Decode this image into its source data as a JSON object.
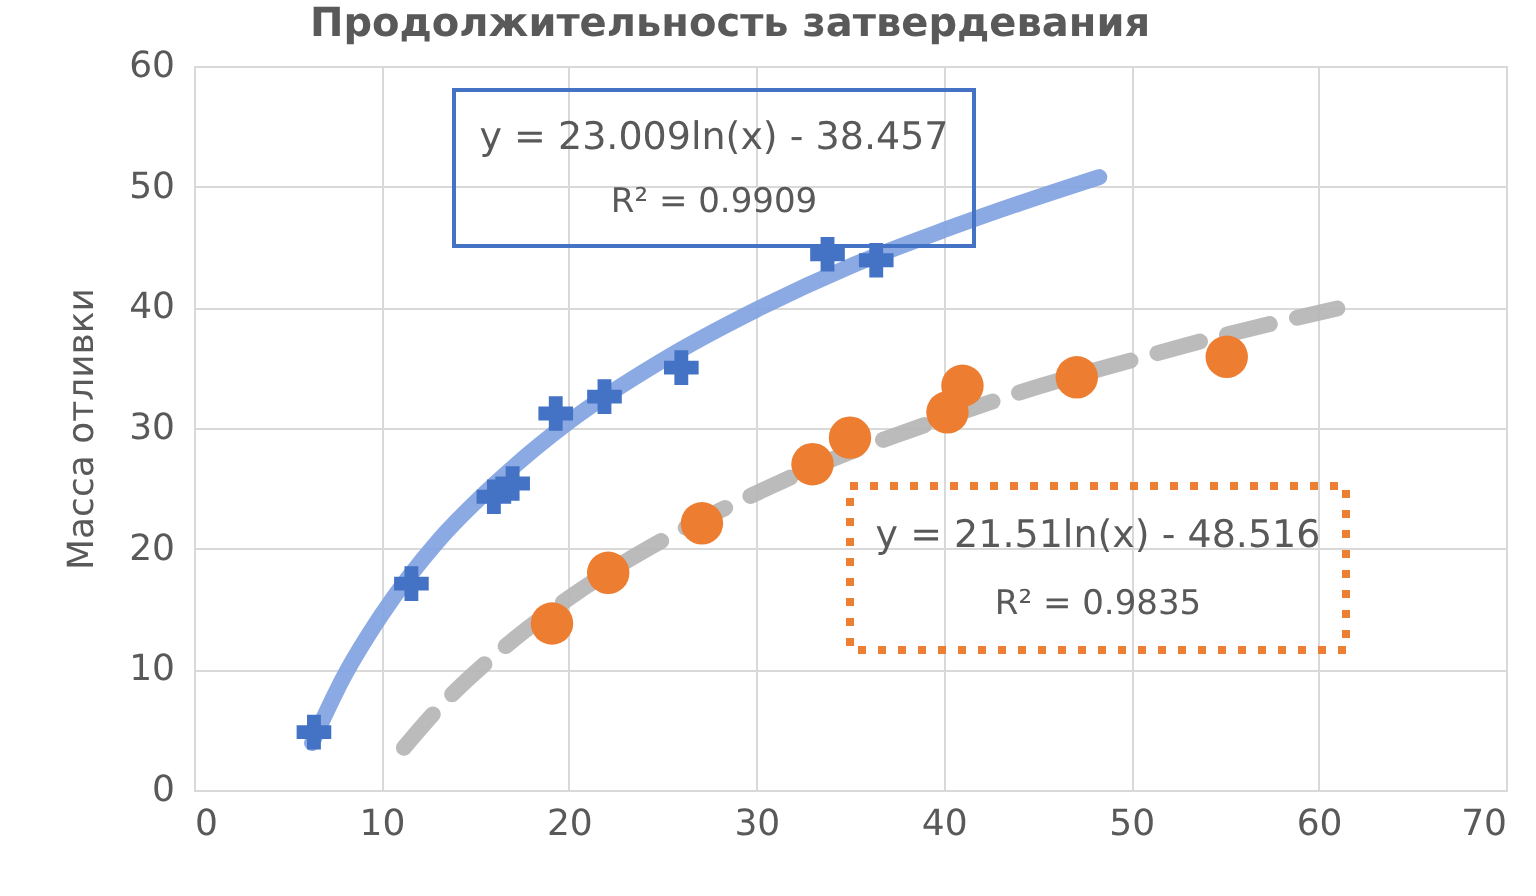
{
  "chart_data": {
    "type": "scatter",
    "title": "Продолжительность затвердевания",
    "ylabel": "Масса отливки",
    "xlim": [
      0,
      70
    ],
    "xticks": [
      0,
      10,
      20,
      30,
      40,
      50,
      60,
      70
    ],
    "ylim": [
      0,
      60
    ],
    "yticks": [
      0,
      10,
      20,
      30,
      40,
      50,
      60
    ],
    "grid": true,
    "legend": false,
    "series": [
      {
        "marker": "cross",
        "color": "#4472c4",
        "x": [
          6.4,
          11.6,
          16.0,
          17.0,
          19.3,
          21.9,
          26.0,
          33.8,
          36.4
        ],
        "values": [
          4.8,
          17.1,
          24.3,
          25.4,
          31.2,
          32.6,
          35.0,
          44.4,
          43.9
        ]
      },
      {
        "marker": "circle",
        "color": "#ed7d31",
        "x": [
          19.1,
          22.1,
          27.1,
          33.0,
          35.0,
          40.2,
          41.0,
          47.1,
          55.1
        ],
        "values": [
          13.8,
          18.0,
          22.1,
          27.0,
          29.2,
          31.3,
          33.5,
          34.2,
          35.9
        ]
      },
      {
        "type": "line",
        "line_style": "solid",
        "color": "#7ea1e0",
        "x": [
          6.3,
          8,
          10,
          13,
          16,
          20,
          25,
          30,
          35,
          40,
          44,
          48.3
        ],
        "values": [
          3.9,
          9.4,
          14.5,
          20.6,
          25.3,
          30.5,
          35.6,
          39.8,
          43.4,
          46.4,
          48.6,
          50.8
        ]
      },
      {
        "type": "line",
        "line_style": "dashed",
        "color": "#b4b4b4",
        "x": [
          11.2,
          13,
          16,
          20,
          25,
          30,
          35,
          38,
          45,
          50,
          55,
          61
        ],
        "values": [
          3.5,
          6.7,
          11.1,
          15.9,
          20.7,
          24.6,
          28.0,
          29.7,
          33.4,
          35.6,
          37.7,
          39.9
        ]
      }
    ],
    "annotations": [
      "y = 23.009ln(x) - 38.457",
      "R² = 0.9909",
      "y = 21.51ln(x) - 48.516",
      "R² = 0.9835"
    ]
  }
}
